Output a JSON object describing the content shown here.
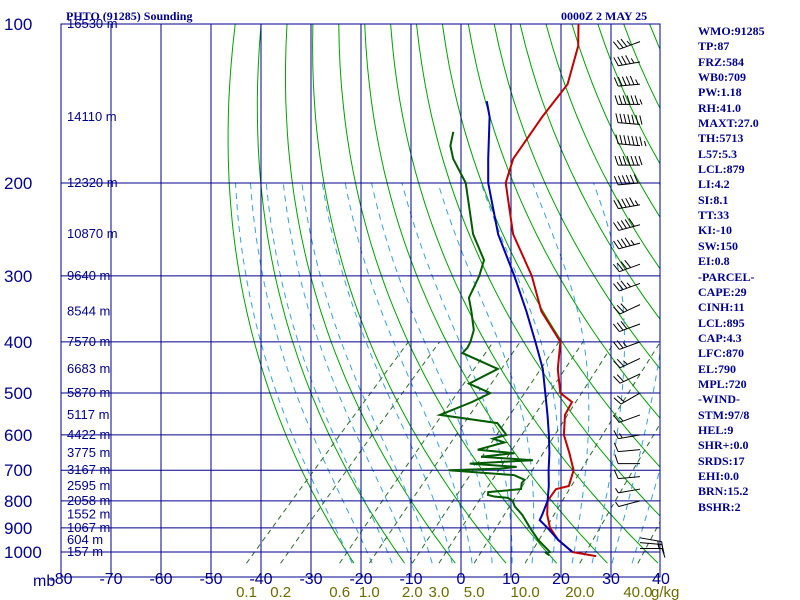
{
  "header": {
    "station_title": "PHTO (91285) Sounding",
    "time_label": "0000Z  2 MAY 25"
  },
  "colors": {
    "grid": "#00008b",
    "dry_adiabat": "#00a000",
    "moist_adiabat": "#3aa0d8",
    "mixing_ratio": "#2a6a2a",
    "temperature": "#c00000",
    "dewpoint": "#005a00",
    "parcel": "#0000b0",
    "axis_text": "#00008b",
    "mixing_text": "#6b6b00",
    "wind": "#000000"
  },
  "chart_data": {
    "type": "line",
    "title": "PHTO (91285) Sounding",
    "xlabel": "",
    "ylabel": "mb",
    "pressure_axis": {
      "ticks": [
        100,
        200,
        300,
        400,
        500,
        600,
        700,
        800,
        900,
        1000
      ],
      "scale": "log",
      "range": [
        100,
        1050
      ]
    },
    "temperature_axis": {
      "labels": [
        "-80",
        "-70",
        "-60",
        "-50",
        "-40",
        "-30",
        "-20",
        "-10",
        "0",
        "10",
        "20",
        "30",
        "40"
      ],
      "values": [
        -80,
        -70,
        -60,
        -50,
        -40,
        -30,
        -20,
        -10,
        0,
        10,
        20,
        30,
        40
      ],
      "range": [
        -80,
        40
      ]
    },
    "height_labels": [
      {
        "p": 100,
        "label": "16530 m"
      },
      {
        "p": 150,
        "label": "14110 m"
      },
      {
        "p": 200,
        "label": "12320 m"
      },
      {
        "p": 250,
        "label": "10870 m"
      },
      {
        "p": 300,
        "label": "9640 m"
      },
      {
        "p": 350,
        "label": "8544 m"
      },
      {
        "p": 400,
        "label": "7570 m"
      },
      {
        "p": 450,
        "label": "6683 m"
      },
      {
        "p": 500,
        "label": "5870 m"
      },
      {
        "p": 550,
        "label": "5117 m"
      },
      {
        "p": 600,
        "label": "4422 m"
      },
      {
        "p": 650,
        "label": "3775 m"
      },
      {
        "p": 700,
        "label": "3167 m"
      },
      {
        "p": 750,
        "label": "2595 m"
      },
      {
        "p": 800,
        "label": "2058 m"
      },
      {
        "p": 850,
        "label": "1552 m"
      },
      {
        "p": 900,
        "label": "1067 m"
      },
      {
        "p": 950,
        "label": "604 m"
      },
      {
        "p": 1000,
        "label": "157 m"
      }
    ],
    "mixing_ratio_labels": [
      "0.1",
      "0.2",
      "0.6",
      "1.0",
      "2.0",
      "3.0",
      "5.0",
      "10.0",
      "20.0",
      "40.0"
    ],
    "mixing_ratio_values": [
      0.1,
      0.2,
      0.6,
      1.0,
      2.0,
      3.0,
      5.0,
      10.0,
      20.0,
      40.0
    ],
    "mixing_ratio_unit": "g/kg",
    "series": [
      {
        "name": "Temperature",
        "values": [
          [
            1018,
            27.5
          ],
          [
            1010,
            25.0
          ],
          [
            1000,
            22.0
          ],
          [
            950,
            17.0
          ],
          [
            900,
            13.0
          ],
          [
            850,
            10.0
          ],
          [
            800,
            7.5
          ],
          [
            760,
            7.0
          ],
          [
            750,
            9.0
          ],
          [
            700,
            7.0
          ],
          [
            650,
            3.0
          ],
          [
            600,
            -1.5
          ],
          [
            550,
            -5.0
          ],
          [
            520,
            -6.0
          ],
          [
            500,
            -10.0
          ],
          [
            450,
            -15.0
          ],
          [
            400,
            -19.5
          ],
          [
            350,
            -29.0
          ],
          [
            300,
            -37.5
          ],
          [
            250,
            -49.0
          ],
          [
            200,
            -60.0
          ],
          [
            180,
            -63.0
          ],
          [
            150,
            -65.0
          ],
          [
            130,
            -66.0
          ],
          [
            110,
            -71.0
          ],
          [
            100,
            -75.0
          ]
        ]
      },
      {
        "name": "Dewpoint",
        "values": [
          [
            1015,
            18.0
          ],
          [
            1005,
            17.0
          ],
          [
            1000,
            17.5
          ],
          [
            950,
            13.0
          ],
          [
            900,
            9.0
          ],
          [
            850,
            5.0
          ],
          [
            820,
            2.0
          ],
          [
            800,
            0.5
          ],
          [
            790,
            -1.0
          ],
          [
            785,
            -4.0
          ],
          [
            780,
            -5.5
          ],
          [
            770,
            -6.0
          ],
          [
            760,
            0.0
          ],
          [
            740,
            -1.0
          ],
          [
            730,
            -1.0
          ],
          [
            715,
            -4.0
          ],
          [
            700,
            -18.0
          ],
          [
            695,
            -8.0
          ],
          [
            690,
            -5.0
          ],
          [
            680,
            -15.0
          ],
          [
            670,
            -3.0
          ],
          [
            660,
            -14.0
          ],
          [
            650,
            -8.0
          ],
          [
            640,
            -16.0
          ],
          [
            620,
            -12.0
          ],
          [
            610,
            -15.0
          ],
          [
            600,
            -13.0
          ],
          [
            570,
            -17.0
          ],
          [
            550,
            -30.0
          ],
          [
            520,
            -26.0
          ],
          [
            500,
            -24.0
          ],
          [
            480,
            -30.0
          ],
          [
            450,
            -27.0
          ],
          [
            420,
            -37.0
          ],
          [
            410,
            -37.0
          ],
          [
            400,
            -37.5
          ],
          [
            380,
            -39.0
          ],
          [
            350,
            -43.0
          ],
          [
            330,
            -46.0
          ],
          [
            300,
            -48.0
          ],
          [
            280,
            -50.0
          ],
          [
            250,
            -57.0
          ],
          [
            200,
            -68.0
          ],
          [
            180,
            -75.0
          ],
          [
            170,
            -78.0
          ],
          [
            160,
            -80.0
          ]
        ]
      },
      {
        "name": "Parcel",
        "values": [
          [
            1000,
            22.0
          ],
          [
            950,
            17.0
          ],
          [
            900,
            12.5
          ],
          [
            870,
            9.5
          ],
          [
            850,
            9.0
          ],
          [
            800,
            7.5
          ],
          [
            750,
            5.0
          ],
          [
            700,
            2.0
          ],
          [
            650,
            -1.0
          ],
          [
            600,
            -4.5
          ],
          [
            550,
            -8.5
          ],
          [
            500,
            -13.0
          ],
          [
            450,
            -18.0
          ],
          [
            400,
            -24.5
          ],
          [
            350,
            -32.0
          ],
          [
            300,
            -41.0
          ],
          [
            250,
            -52.0
          ],
          [
            200,
            -63.5
          ],
          [
            180,
            -68.0
          ],
          [
            150,
            -75.5
          ],
          [
            140,
            -79.0
          ]
        ]
      }
    ],
    "wind_barbs": [
      {
        "p": 108,
        "dir": 250,
        "spd": 35
      },
      {
        "p": 118,
        "dir": 260,
        "spd": 45
      },
      {
        "p": 130,
        "dir": 265,
        "spd": 55
      },
      {
        "p": 142,
        "dir": 270,
        "spd": 65
      },
      {
        "p": 155,
        "dir": 275,
        "spd": 70
      },
      {
        "p": 170,
        "dir": 275,
        "spd": 75
      },
      {
        "p": 185,
        "dir": 270,
        "spd": 70
      },
      {
        "p": 200,
        "dir": 265,
        "spd": 60
      },
      {
        "p": 220,
        "dir": 260,
        "spd": 55
      },
      {
        "p": 240,
        "dir": 255,
        "spd": 50
      },
      {
        "p": 260,
        "dir": 255,
        "spd": 45
      },
      {
        "p": 285,
        "dir": 250,
        "spd": 40
      },
      {
        "p": 310,
        "dir": 250,
        "spd": 35
      },
      {
        "p": 340,
        "dir": 245,
        "spd": 30
      },
      {
        "p": 370,
        "dir": 250,
        "spd": 30
      },
      {
        "p": 400,
        "dir": 250,
        "spd": 25
      },
      {
        "p": 430,
        "dir": 245,
        "spd": 25
      },
      {
        "p": 460,
        "dir": 245,
        "spd": 20
      },
      {
        "p": 500,
        "dir": 240,
        "spd": 20
      },
      {
        "p": 550,
        "dir": 250,
        "spd": 15
      },
      {
        "p": 600,
        "dir": 260,
        "spd": 15
      },
      {
        "p": 640,
        "dir": 265,
        "spd": 10
      },
      {
        "p": 680,
        "dir": 270,
        "spd": 10
      },
      {
        "p": 720,
        "dir": 265,
        "spd": 10
      },
      {
        "p": 760,
        "dir": 260,
        "spd": 5
      },
      {
        "p": 800,
        "dir": 255,
        "spd": 5
      },
      {
        "p": 940,
        "dir": 100,
        "spd": 15
      },
      {
        "p": 960,
        "dir": 95,
        "spd": 15
      },
      {
        "p": 985,
        "dir": 90,
        "spd": 10
      }
    ],
    "grid": true
  },
  "stats": [
    "WMO:91285",
    "TP:87",
    "FRZ:584",
    "WB0:709",
    "PW:1.18",
    "RH:41.0",
    "MAXT:27.0",
    "TH:5713",
    "L57:5.3",
    "LCL:879",
    "LI:4.2",
    "SI:8.1",
    "TT:33",
    "KI:-10",
    "SW:150",
    "EI:0.8",
    "-PARCEL-",
    "CAPE:29",
    "CINH:11",
    "LCL:895",
    "CAP:4.3",
    "LFC:870",
    "EL:790",
    "MPL:720",
    "-WIND-",
    "STM:97/8",
    "HEL:9",
    "SHR+:0.0",
    "SRDS:17",
    "EHI:0.0",
    "BRN:15.2",
    "BSHR:2"
  ]
}
